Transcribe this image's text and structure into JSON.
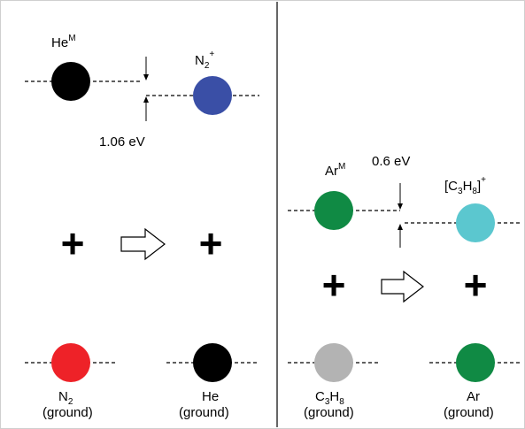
{
  "colors": {
    "he_metastable": "#000000",
    "n2_ion": "#3a4fa6",
    "n2_ground": "#ee2228",
    "he_ground": "#000000",
    "ar_metastable": "#108a44",
    "c3h8_ion": "#5bc7cf",
    "c3h8_ground": "#b3b3b3",
    "ar_ground": "#108a44",
    "n2_label": "#3a4fa6"
  },
  "left": {
    "reactant_main": "He",
    "reactant_sup": "M",
    "product_main": "N",
    "product_sub": "2",
    "product_sup": "+",
    "energy_gap": "1.06 eV",
    "plus_top": "+",
    "plus_bottom": "+",
    "ground1_main": "N",
    "ground1_sub": "2",
    "ground1_state": "(ground)",
    "ground2_main": "He",
    "ground2_state": "(ground)"
  },
  "right": {
    "reactant_main": "Ar",
    "reactant_sup": "M",
    "energy_gap": "0.6 eV",
    "product_open": "[C",
    "product_sub1": "3",
    "product_mid": "H",
    "product_sub2": "8",
    "product_close": "]",
    "product_sup": "+",
    "plus_top": "+",
    "plus_bottom": "+",
    "ground1_c": "C",
    "ground1_sub1": "3",
    "ground1_h": "H",
    "ground1_sub2": "8",
    "ground1_state": "(ground)",
    "ground2_main": "Ar",
    "ground2_state": "(ground)"
  }
}
